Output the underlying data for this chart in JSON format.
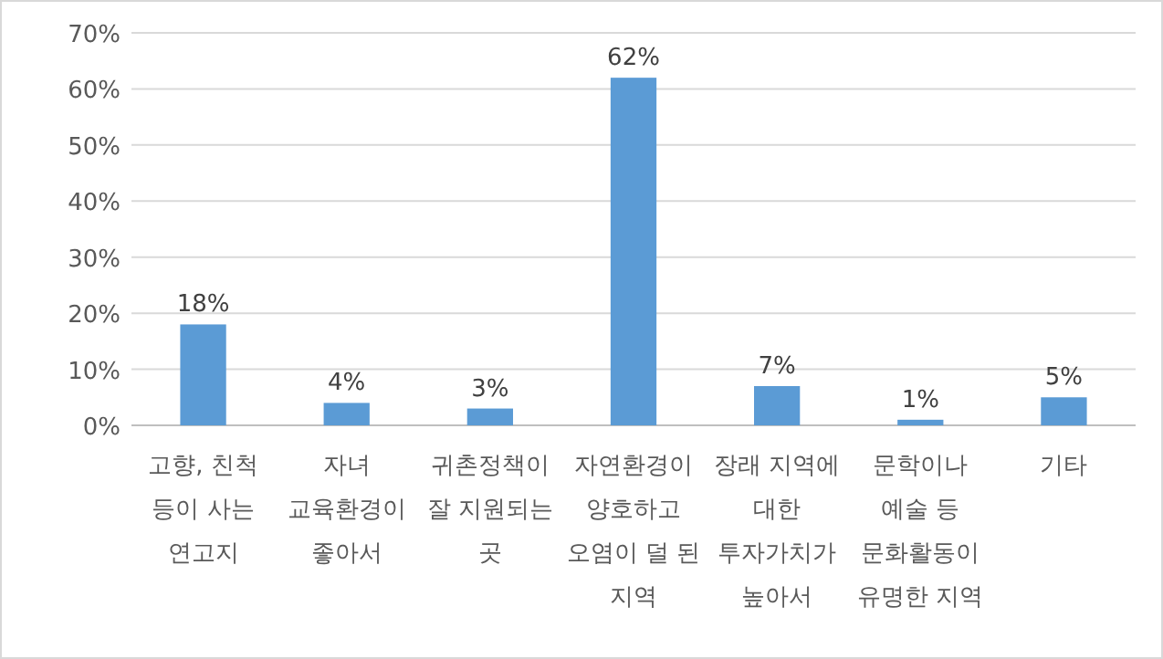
{
  "chart_data": {
    "type": "bar",
    "categories": [
      "고향, 친척 등이 사는 연고지",
      "자녀 교육환경이 좋아서",
      "귀촌정책이 잘 지원되는 곳",
      "자연환경이 양호하고 오염이 덜 된 지역",
      "장래 지역에 대한 투자가치가 높아서",
      "문학이나 예술 등 문화활동이 유명한 지역",
      "기타"
    ],
    "values": [
      18,
      4,
      3,
      62,
      7,
      1,
      5
    ],
    "color": "#5b9bd5",
    "ylim": [
      0,
      70
    ],
    "yticks": [
      {
        "value": 0,
        "label": "0%"
      },
      {
        "value": 10,
        "label": "10%"
      },
      {
        "value": 20,
        "label": "20%"
      },
      {
        "value": 30,
        "label": "30%"
      },
      {
        "value": 40,
        "label": "40%"
      },
      {
        "value": 50,
        "label": "50%"
      },
      {
        "value": 60,
        "label": "60%"
      },
      {
        "value": 70,
        "label": "70%"
      }
    ],
    "value_labels": [
      "18%",
      "4%",
      "3%",
      "62%",
      "7%",
      "1%",
      "5%"
    ],
    "grid": "y"
  }
}
